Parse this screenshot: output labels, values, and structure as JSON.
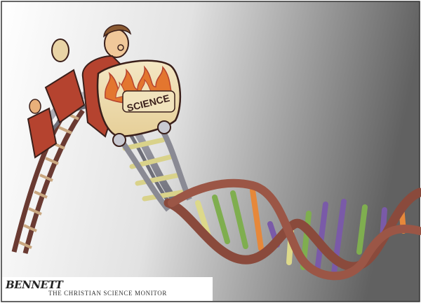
{
  "cartoon": {
    "car_label": "SCIENCE",
    "artist_signature": "BENNETT",
    "publication_credit": "THE CHRISTIAN SCIENCE MONITOR",
    "colors": {
      "car_red": "#b5432f",
      "flame_orange": "#e3762f",
      "track_gray": "#8a8a94",
      "strand_brown": "#8a4a3c",
      "rung_yellow": "#ddd98a",
      "rung_green": "#7fae4f",
      "rung_purple": "#7a5aa8",
      "rung_orange": "#e6883a",
      "background_gray": "#6c6c6c"
    }
  }
}
